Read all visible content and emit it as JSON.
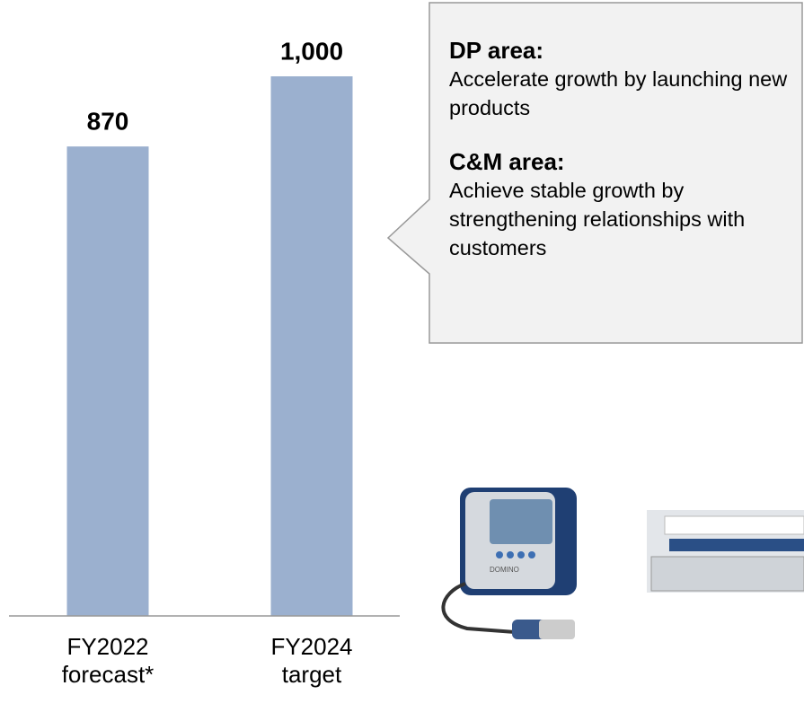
{
  "chart_data": {
    "type": "bar",
    "categories": [
      "FY2022 forecast*",
      "FY2024 target"
    ],
    "values": [
      870,
      1000
    ],
    "value_labels": [
      "870",
      "1,000"
    ],
    "color": "#9bb0cf",
    "ylim": [
      0,
      1000
    ]
  },
  "callout": {
    "sections": [
      {
        "heading": "DP area:",
        "text": "Accelerate growth by launching new products"
      },
      {
        "heading": "C&M area:",
        "text": "Achieve stable growth by strengthening relationships with customers"
      }
    ]
  },
  "product_image": {
    "brand": "DOMINO"
  }
}
